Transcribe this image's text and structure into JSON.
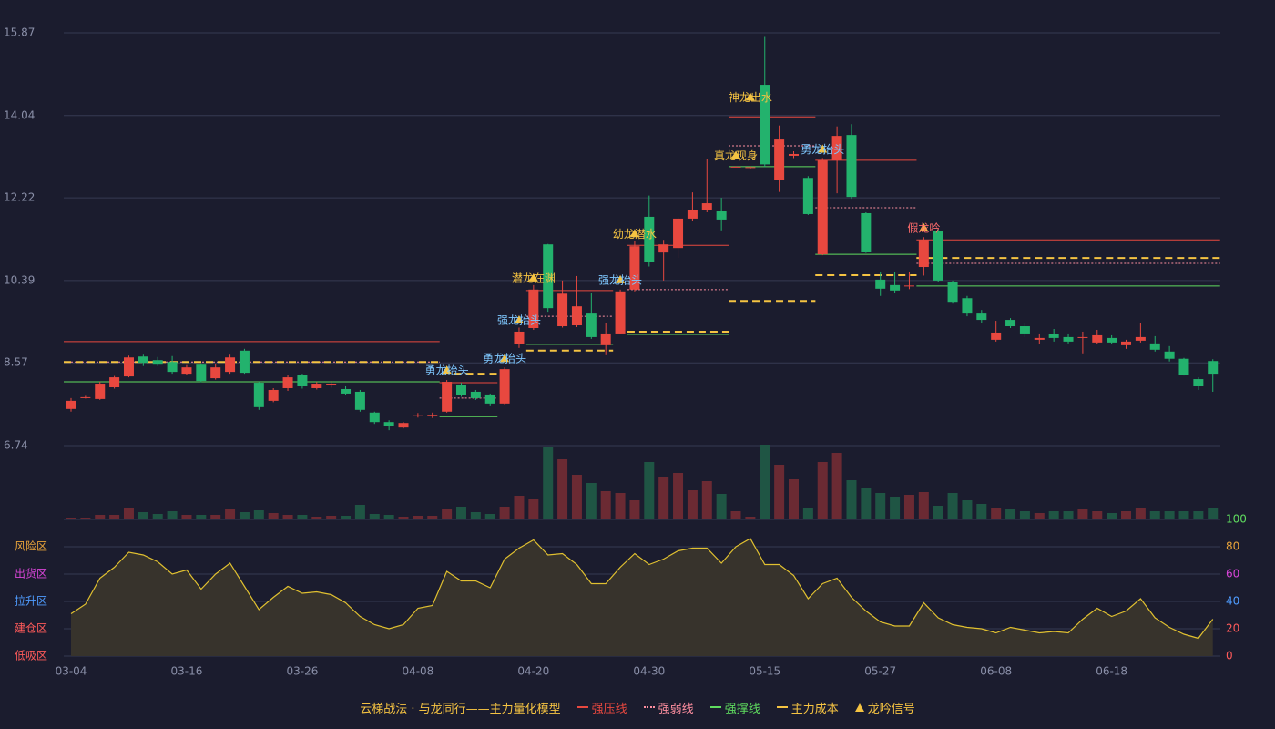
{
  "chart_data": [
    {
      "type": "candlestick",
      "categories": [
        "03-04",
        null,
        null,
        null,
        null,
        null,
        null,
        null,
        "03-16",
        null,
        null,
        null,
        null,
        null,
        null,
        null,
        "03-26",
        null,
        null,
        null,
        null,
        null,
        null,
        null,
        "04-08",
        null,
        null,
        null,
        null,
        null,
        null,
        null,
        "04-20",
        null,
        null,
        null,
        null,
        null,
        null,
        null,
        "04-30",
        null,
        null,
        null,
        null,
        null,
        null,
        null,
        "05-15",
        null,
        null,
        null,
        null,
        null,
        null,
        null,
        "05-27",
        null,
        null,
        null,
        null,
        null,
        null,
        null,
        "06-08",
        null,
        null,
        null,
        null,
        null,
        null,
        null,
        "06-18",
        null,
        null,
        null,
        null,
        null,
        null,
        null
      ],
      "open": [
        7.55,
        7.8,
        7.77,
        8.03,
        8.27,
        8.71,
        8.63,
        8.59,
        8.33,
        8.53,
        8.23,
        8.37,
        8.84,
        8.13,
        7.73,
        8.01,
        8.31,
        8.01,
        8.07,
        7.99,
        7.93,
        7.47,
        7.26,
        7.14,
        7.4,
        7.4,
        7.49,
        8.09,
        7.93,
        7.87,
        7.67,
        8.98,
        9.34,
        11.19,
        9.38,
        9.4,
        9.66,
        8.96,
        9.22,
        10.19,
        11.8,
        11.01,
        11.11,
        11.76,
        11.94,
        11.92,
        12.9,
        12.88,
        14.72,
        12.62,
        13.15,
        12.66,
        10.97,
        13.05,
        13.61,
        11.88,
        10.41,
        10.29,
        10.26,
        10.69,
        11.49,
        10.35,
        10.0,
        9.66,
        9.08,
        9.52,
        9.38,
        9.08,
        9.2,
        9.14,
        9.12,
        9.02,
        9.12,
        8.96,
        9.06,
        9.0,
        8.82,
        8.66,
        8.21,
        8.61
      ],
      "close": [
        7.73,
        7.81,
        8.11,
        8.25,
        8.69,
        8.57,
        8.53,
        8.37,
        8.47,
        8.17,
        8.47,
        8.69,
        8.35,
        7.59,
        7.97,
        8.25,
        8.05,
        8.11,
        8.11,
        7.89,
        7.53,
        7.26,
        7.18,
        7.24,
        7.41,
        7.42,
        8.15,
        7.85,
        7.79,
        7.67,
        8.43,
        9.26,
        10.19,
        9.78,
        10.1,
        9.82,
        9.14,
        9.22,
        10.15,
        11.15,
        10.81,
        11.19,
        11.76,
        11.94,
        12.1,
        11.74,
        12.91,
        12.9,
        12.96,
        13.51,
        13.19,
        11.86,
        13.05,
        13.59,
        12.24,
        11.03,
        10.21,
        10.17,
        10.28,
        11.29,
        10.39,
        9.92,
        9.66,
        9.52,
        9.24,
        9.38,
        9.22,
        9.12,
        9.12,
        9.04,
        9.14,
        9.18,
        9.02,
        9.04,
        9.14,
        8.86,
        8.66,
        8.31,
        8.05,
        8.33
      ],
      "high": [
        7.79,
        7.84,
        8.15,
        8.28,
        8.73,
        8.75,
        8.7,
        8.72,
        8.52,
        8.55,
        8.55,
        8.75,
        8.88,
        8.15,
        8.01,
        8.3,
        8.33,
        8.15,
        8.17,
        8.05,
        7.97,
        7.49,
        7.3,
        7.26,
        7.46,
        7.47,
        8.19,
        8.13,
        7.97,
        7.89,
        8.47,
        9.35,
        10.29,
        11.2,
        10.39,
        10.49,
        10.11,
        9.46,
        10.19,
        11.27,
        12.27,
        11.29,
        11.8,
        12.34,
        13.08,
        12.22,
        12.92,
        12.92,
        15.78,
        13.82,
        13.25,
        12.7,
        13.1,
        13.8,
        13.85,
        11.9,
        10.59,
        10.59,
        10.59,
        11.35,
        11.53,
        10.39,
        10.05,
        9.74,
        9.5,
        9.56,
        9.44,
        9.22,
        9.32,
        9.22,
        9.26,
        9.3,
        9.18,
        9.08,
        9.46,
        9.16,
        8.94,
        8.68,
        8.25,
        8.65
      ],
      "low": [
        7.49,
        7.78,
        7.75,
        8.0,
        8.25,
        8.5,
        8.5,
        8.33,
        8.3,
        8.14,
        8.2,
        8.33,
        8.33,
        7.53,
        7.7,
        7.95,
        8.0,
        7.98,
        8.02,
        7.85,
        7.49,
        7.22,
        7.08,
        7.12,
        7.36,
        7.35,
        7.47,
        7.82,
        7.75,
        7.63,
        7.65,
        8.9,
        9.3,
        9.7,
        9.35,
        9.36,
        9.1,
        8.74,
        9.2,
        10.15,
        10.7,
        10.39,
        10.89,
        11.7,
        11.9,
        11.5,
        12.9,
        12.86,
        12.9,
        12.35,
        13.1,
        11.84,
        10.95,
        12.32,
        12.2,
        11.0,
        10.05,
        10.11,
        10.2,
        10.5,
        10.35,
        9.88,
        9.6,
        9.46,
        9.04,
        9.34,
        9.14,
        8.98,
        9.04,
        9.0,
        8.78,
        8.98,
        8.98,
        8.88,
        9.02,
        8.82,
        8.6,
        8.29,
        7.97,
        7.93
      ],
      "up_color": "#e8483f",
      "down_color": "#23b26d",
      "ylim": [
        6.74,
        15.87
      ],
      "yticks": [
        15.87,
        14.04,
        12.22,
        10.39,
        8.57,
        6.74
      ],
      "grid": true,
      "levels": [
        {
          "name": "强压线",
          "color": "#e8483f",
          "style": "solid",
          "segments": [
            {
              "from": 0,
              "to": 25,
              "value": 9.04
            },
            {
              "from": 26,
              "to": 29,
              "value": 8.13
            },
            {
              "from": 32,
              "to": 37,
              "value": 10.17
            },
            {
              "from": 39,
              "to": 45,
              "value": 11.17
            },
            {
              "from": 46,
              "to": 51,
              "value": 14.01
            },
            {
              "from": 52,
              "to": 58,
              "value": 13.05
            },
            {
              "from": 59,
              "to": 79,
              "value": 11.29
            }
          ]
        },
        {
          "name": "强弱线",
          "color": "#ff8fa0",
          "style": "dotted",
          "segments": [
            {
              "from": 0,
              "to": 25,
              "value": 8.59
            },
            {
              "from": 26,
              "to": 29,
              "value": 7.79
            },
            {
              "from": 32,
              "to": 37,
              "value": 9.6
            },
            {
              "from": 39,
              "to": 45,
              "value": 10.19
            },
            {
              "from": 46,
              "to": 51,
              "value": 13.37
            },
            {
              "from": 52,
              "to": 58,
              "value": 12.0
            },
            {
              "from": 59,
              "to": 79,
              "value": 10.77
            }
          ]
        },
        {
          "name": "强撑线",
          "color": "#5fdc5f",
          "style": "solid",
          "segments": [
            {
              "from": 0,
              "to": 25,
              "value": 8.15
            },
            {
              "from": 26,
              "to": 29,
              "value": 7.38
            },
            {
              "from": 32,
              "to": 37,
              "value": 8.98
            },
            {
              "from": 39,
              "to": 45,
              "value": 9.2
            },
            {
              "from": 46,
              "to": 51,
              "value": 12.91
            },
            {
              "from": 52,
              "to": 58,
              "value": 10.97
            },
            {
              "from": 59,
              "to": 79,
              "value": 10.27
            }
          ]
        },
        {
          "name": "主力成本",
          "color": "#f5c342",
          "style": "dashed",
          "segments": [
            {
              "from": 0,
              "to": 25,
              "value": 8.59
            },
            {
              "from": 27,
              "to": 29,
              "value": 8.33
            },
            {
              "from": 32,
              "to": 37,
              "value": 8.84
            },
            {
              "from": 39,
              "to": 45,
              "value": 9.26
            },
            {
              "from": 46,
              "to": 51,
              "value": 9.94
            },
            {
              "from": 52,
              "to": 58,
              "value": 10.51
            },
            {
              "from": 59,
              "to": 79,
              "value": 10.89
            }
          ]
        }
      ],
      "signals": {
        "name": "龙吟信号",
        "color": "#f5c342",
        "items": [
          {
            "index": 26,
            "value": 8.39,
            "label": "勇龙抬头",
            "color": "#7fc8ff"
          },
          {
            "index": 30,
            "value": 8.65,
            "label": "勇龙抬头",
            "color": "#7fc8ff"
          },
          {
            "index": 31,
            "value": 9.5,
            "label": "强龙抬头",
            "color": "#7fc8ff"
          },
          {
            "index": 32,
            "value": 10.43,
            "label": "潜龙在渊",
            "color": "#f5c342"
          },
          {
            "index": 38,
            "value": 10.39,
            "label": "强龙抬头",
            "color": "#7fc8ff"
          },
          {
            "index": 39,
            "value": 11.41,
            "label": "幼龙潜水",
            "color": "#f5c342"
          },
          {
            "index": 46,
            "value": 13.14,
            "label": "真龙现身",
            "color": "#f5c342"
          },
          {
            "index": 47,
            "value": 14.43,
            "label": "神龙出水",
            "color": "#f5c342"
          },
          {
            "index": 52,
            "value": 13.28,
            "label": "勇龙抬头",
            "color": "#7fc8ff"
          },
          {
            "index": 59,
            "value": 11.54,
            "label": "假龙吟",
            "color": "#ff6b6b"
          }
        ]
      },
      "model_title": "云梯战法 · 与龙同行——主力量化模型",
      "model_title_color": "#f5c342"
    },
    {
      "type": "bar",
      "values": [
        2,
        2,
        5,
        5,
        12,
        8,
        6,
        9,
        5,
        5,
        5,
        11,
        8,
        10,
        7,
        5,
        5,
        3,
        4,
        4,
        16,
        6,
        5,
        3,
        4,
        4,
        11,
        14,
        8,
        6,
        14,
        26,
        22,
        80,
        66,
        49,
        40,
        31,
        29,
        21,
        63,
        47,
        51,
        32,
        42,
        28,
        9,
        3,
        82,
        60,
        44,
        13,
        63,
        73,
        43,
        35,
        29,
        25,
        27,
        30,
        15,
        29,
        21,
        17,
        13,
        11,
        9,
        7,
        9,
        9,
        11,
        9,
        7,
        9,
        12,
        9,
        9,
        9,
        9,
        12
      ],
      "up_color": "#6b2a33",
      "down_color": "#1f5544"
    },
    {
      "type": "area",
      "values": [
        31,
        38,
        57,
        65,
        76,
        74,
        69,
        60,
        63,
        49,
        60,
        68,
        51,
        34,
        43,
        51,
        46,
        47,
        45,
        39,
        29,
        23,
        20,
        23,
        35,
        37,
        62,
        55,
        55,
        50,
        71,
        79,
        85,
        74,
        75,
        67,
        53,
        53,
        65,
        75,
        67,
        71,
        77,
        79,
        79,
        68,
        80,
        86,
        67,
        67,
        59,
        42,
        53,
        57,
        43,
        33,
        25,
        22,
        22,
        39,
        28,
        23,
        21,
        20,
        17,
        21,
        19,
        17,
        18,
        17,
        27,
        35,
        29,
        33,
        42,
        28,
        21,
        16,
        13,
        27
      ],
      "color": "#e0c030",
      "fill": "#37332c",
      "ylim": [
        0,
        100
      ],
      "yticks": [
        100,
        80,
        60,
        40,
        20,
        0
      ],
      "ytick_colors": [
        "#5fdc5f",
        "#e8a33a",
        "#d845d8",
        "#4f9cff",
        "#ff5a5a",
        "#ff5a5a"
      ],
      "zones": [
        {
          "value": 80,
          "label": "风险区"
        },
        {
          "value": 60,
          "label": "出货区"
        },
        {
          "value": 40,
          "label": "拉升区"
        },
        {
          "value": 20,
          "label": "建仓区"
        },
        {
          "value": 0,
          "label": "低吸区"
        }
      ],
      "zone_colors": [
        "#e8a33a",
        "#d845d8",
        "#4f9cff",
        "#ff5a5a",
        "#ff5a5a"
      ],
      "grid": true
    }
  ]
}
